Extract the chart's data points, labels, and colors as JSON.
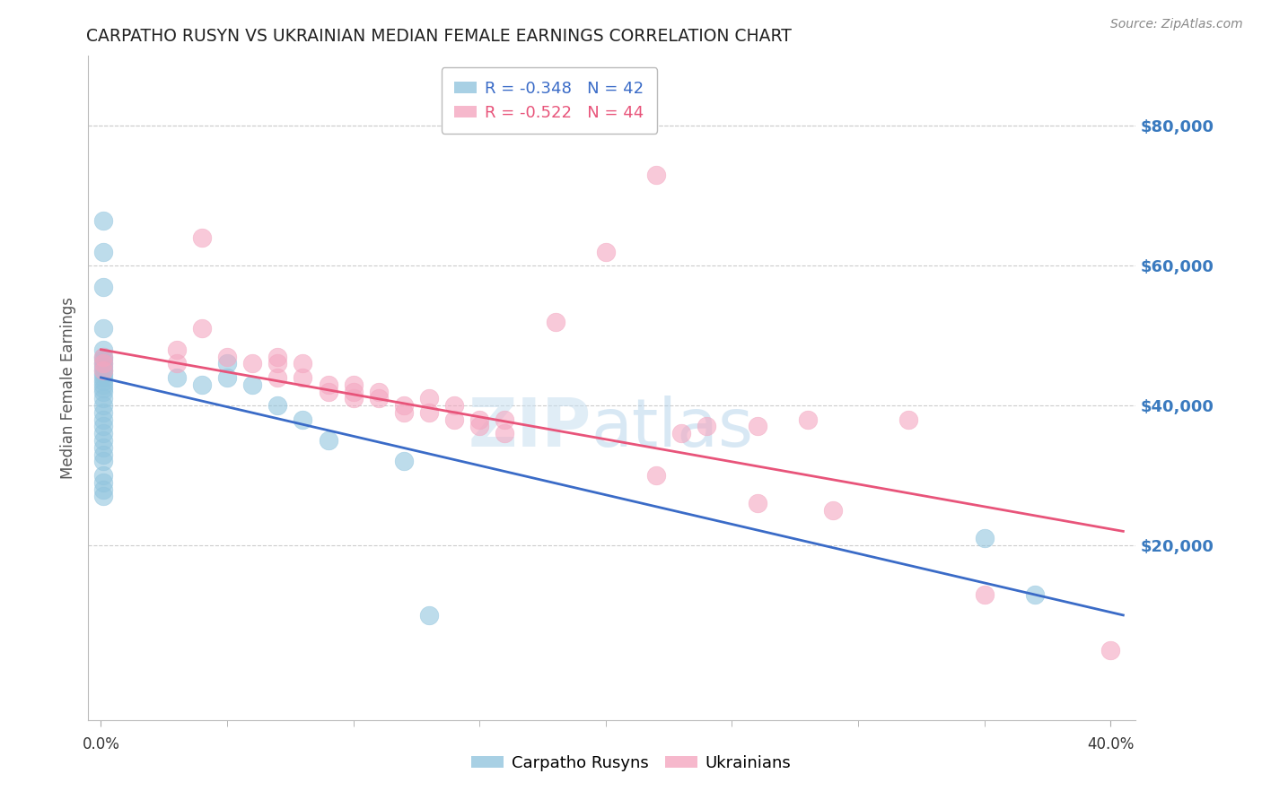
{
  "title": "CARPATHO RUSYN VS UKRAINIAN MEDIAN FEMALE EARNINGS CORRELATION CHART",
  "source": "Source: ZipAtlas.com",
  "ylabel": "Median Female Earnings",
  "ylabel_right_ticks": [
    "$80,000",
    "$60,000",
    "$40,000",
    "$20,000"
  ],
  "ylabel_right_vals": [
    80000,
    60000,
    40000,
    20000
  ],
  "xlim": [
    -0.005,
    0.41
  ],
  "ylim": [
    -5000,
    90000
  ],
  "watermark_zip": "ZIP",
  "watermark_atlas": "atlas",
  "legend_line1": "R = -0.348   N = 42",
  "legend_line2": "R = -0.522   N = 44",
  "legend_names": [
    "Carpatho Rusyns",
    "Ukrainians"
  ],
  "blue_color": "#92c5de",
  "pink_color": "#f4a6c0",
  "line_blue": "#3a6bc7",
  "line_pink": "#e8547a",
  "blue_scatter": [
    [
      0.001,
      66500
    ],
    [
      0.001,
      62000
    ],
    [
      0.001,
      57000
    ],
    [
      0.001,
      51000
    ],
    [
      0.001,
      48000
    ],
    [
      0.001,
      47000
    ],
    [
      0.001,
      46500
    ],
    [
      0.001,
      46000
    ],
    [
      0.001,
      45500
    ],
    [
      0.001,
      45000
    ],
    [
      0.001,
      44500
    ],
    [
      0.001,
      44000
    ],
    [
      0.001,
      43500
    ],
    [
      0.001,
      43000
    ],
    [
      0.001,
      42500
    ],
    [
      0.001,
      42000
    ],
    [
      0.001,
      41000
    ],
    [
      0.001,
      40000
    ],
    [
      0.001,
      39000
    ],
    [
      0.001,
      38000
    ],
    [
      0.001,
      37000
    ],
    [
      0.001,
      36000
    ],
    [
      0.001,
      35000
    ],
    [
      0.001,
      34000
    ],
    [
      0.001,
      33000
    ],
    [
      0.001,
      32000
    ],
    [
      0.001,
      30000
    ],
    [
      0.001,
      29000
    ],
    [
      0.001,
      28000
    ],
    [
      0.001,
      27000
    ],
    [
      0.03,
      44000
    ],
    [
      0.04,
      43000
    ],
    [
      0.05,
      46000
    ],
    [
      0.05,
      44000
    ],
    [
      0.06,
      43000
    ],
    [
      0.07,
      40000
    ],
    [
      0.08,
      38000
    ],
    [
      0.09,
      35000
    ],
    [
      0.12,
      32000
    ],
    [
      0.13,
      10000
    ],
    [
      0.35,
      21000
    ],
    [
      0.37,
      13000
    ]
  ],
  "pink_scatter": [
    [
      0.001,
      47000
    ],
    [
      0.001,
      46000
    ],
    [
      0.001,
      45000
    ],
    [
      0.03,
      48000
    ],
    [
      0.03,
      46000
    ],
    [
      0.04,
      51000
    ],
    [
      0.05,
      47000
    ],
    [
      0.06,
      46000
    ],
    [
      0.07,
      47000
    ],
    [
      0.07,
      46000
    ],
    [
      0.07,
      44000
    ],
    [
      0.08,
      46000
    ],
    [
      0.08,
      44000
    ],
    [
      0.09,
      43000
    ],
    [
      0.09,
      42000
    ],
    [
      0.1,
      43000
    ],
    [
      0.1,
      42000
    ],
    [
      0.1,
      41000
    ],
    [
      0.11,
      42000
    ],
    [
      0.11,
      41000
    ],
    [
      0.12,
      40000
    ],
    [
      0.12,
      39000
    ],
    [
      0.13,
      41000
    ],
    [
      0.13,
      39000
    ],
    [
      0.14,
      40000
    ],
    [
      0.14,
      38000
    ],
    [
      0.15,
      38000
    ],
    [
      0.15,
      37000
    ],
    [
      0.16,
      38000
    ],
    [
      0.16,
      36000
    ],
    [
      0.04,
      64000
    ],
    [
      0.18,
      52000
    ],
    [
      0.2,
      62000
    ],
    [
      0.22,
      73000
    ],
    [
      0.22,
      30000
    ],
    [
      0.23,
      36000
    ],
    [
      0.24,
      37000
    ],
    [
      0.26,
      37000
    ],
    [
      0.26,
      26000
    ],
    [
      0.28,
      38000
    ],
    [
      0.29,
      25000
    ],
    [
      0.32,
      38000
    ],
    [
      0.35,
      13000
    ],
    [
      0.4,
      5000
    ]
  ],
  "blue_line_x": [
    0.0,
    0.405
  ],
  "blue_line_y": [
    44000,
    10000
  ],
  "pink_line_x": [
    0.0,
    0.405
  ],
  "pink_line_y": [
    48000,
    22000
  ],
  "grid_color": "#cccccc",
  "background_color": "#ffffff",
  "title_color": "#222222",
  "axis_label_color": "#555555",
  "right_axis_color": "#3a7abf",
  "source_color": "#888888",
  "minor_xtick_vals": [
    0.05,
    0.1,
    0.15,
    0.2,
    0.25,
    0.3,
    0.35
  ],
  "major_xtick_vals": [
    0.0,
    0.4
  ],
  "major_xtick_labels": [
    "0.0%",
    "40.0%"
  ]
}
